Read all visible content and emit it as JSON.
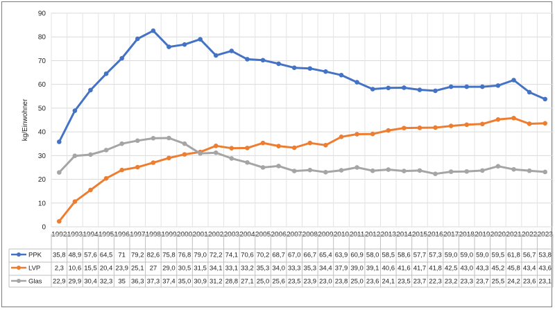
{
  "chart_data": {
    "type": "line",
    "title": "",
    "xlabel": "",
    "ylabel": "kg/Einwohner",
    "ylim": [
      0,
      90
    ],
    "ytick_step": 10,
    "grid": true,
    "legend": "data table below chart",
    "categories": [
      "1992",
      "1993",
      "1994",
      "1995",
      "1996",
      "1997",
      "1998",
      "1999",
      "2000",
      "2001",
      "2002",
      "2003",
      "2004",
      "2005",
      "2006",
      "2007",
      "2008",
      "2009",
      "2010",
      "2011",
      "2012",
      "2013",
      "2014",
      "2015",
      "2016",
      "2017",
      "2018",
      "2019",
      "2020",
      "2021",
      "2022",
      "2023"
    ],
    "series": [
      {
        "name": "PPK",
        "color": "#4472c4",
        "values": [
          35.8,
          48.9,
          57.6,
          64.5,
          71,
          79.2,
          82.6,
          75.8,
          76.8,
          79.0,
          72.2,
          74.1,
          70.6,
          70.2,
          68.7,
          67.0,
          66.7,
          65.4,
          63.9,
          60.9,
          58.0,
          58.5,
          58.6,
          57.7,
          57.3,
          59.0,
          59.0,
          59.0,
          59.5,
          61.8,
          56.7,
          53.8
        ],
        "labels": [
          "35,8",
          "48,9",
          "57,6",
          "64,5",
          "71",
          "79,2",
          "82,6",
          "75,8",
          "76,8",
          "79,0",
          "72,2",
          "74,1",
          "70,6",
          "70,2",
          "68,7",
          "67,0",
          "66,7",
          "65,4",
          "63,9",
          "60,9",
          "58,0",
          "58,5",
          "58,6",
          "57,7",
          "57,3",
          "59,0",
          "59,0",
          "59,0",
          "59,5",
          "61,8",
          "56,7",
          "53,8"
        ]
      },
      {
        "name": "LVP",
        "color": "#ed7d31",
        "values": [
          2.3,
          10.6,
          15.5,
          20.4,
          23.9,
          25.1,
          27,
          29.0,
          30.5,
          31.5,
          34.1,
          33.1,
          33.2,
          35.3,
          34.0,
          33.3,
          35.3,
          34.4,
          37.9,
          39.0,
          39.1,
          40.6,
          41.6,
          41.7,
          41.8,
          42.5,
          43.0,
          43.3,
          45.2,
          45.8,
          43.4,
          43.6
        ],
        "labels": [
          "2,3",
          "10,6",
          "15,5",
          "20,4",
          "23,9",
          "25,1",
          "27",
          "29,0",
          "30,5",
          "31,5",
          "34,1",
          "33,1",
          "33,2",
          "35,3",
          "34,0",
          "33,3",
          "35,3",
          "34,4",
          "37,9",
          "39,0",
          "39,1",
          "40,6",
          "41,6",
          "41,7",
          "41,8",
          "42,5",
          "43,0",
          "43,3",
          "45,2",
          "45,8",
          "43,4",
          "43,6"
        ]
      },
      {
        "name": "Glas",
        "color": "#a5a5a5",
        "values": [
          22.9,
          29.9,
          30.4,
          32.3,
          35,
          36.3,
          37.3,
          37.4,
          35.0,
          30.9,
          31.2,
          28.8,
          27.1,
          25.0,
          25.6,
          23.5,
          23.9,
          23.0,
          23.8,
          25.0,
          23.6,
          24.1,
          23.5,
          23.7,
          22.3,
          23.2,
          23.3,
          23.7,
          25.5,
          24.2,
          23.6,
          23.1
        ],
        "labels": [
          "22,9",
          "29,9",
          "30,4",
          "32,3",
          "35",
          "36,3",
          "37,3",
          "37,4",
          "35,0",
          "30,9",
          "31,2",
          "28,8",
          "27,1",
          "25,0",
          "25,6",
          "23,5",
          "23,9",
          "23,0",
          "23,8",
          "25,0",
          "23,6",
          "24,1",
          "23,5",
          "23,7",
          "22,3",
          "23,2",
          "23,3",
          "23,7",
          "25,5",
          "24,2",
          "23,6",
          "23,1"
        ]
      }
    ]
  }
}
